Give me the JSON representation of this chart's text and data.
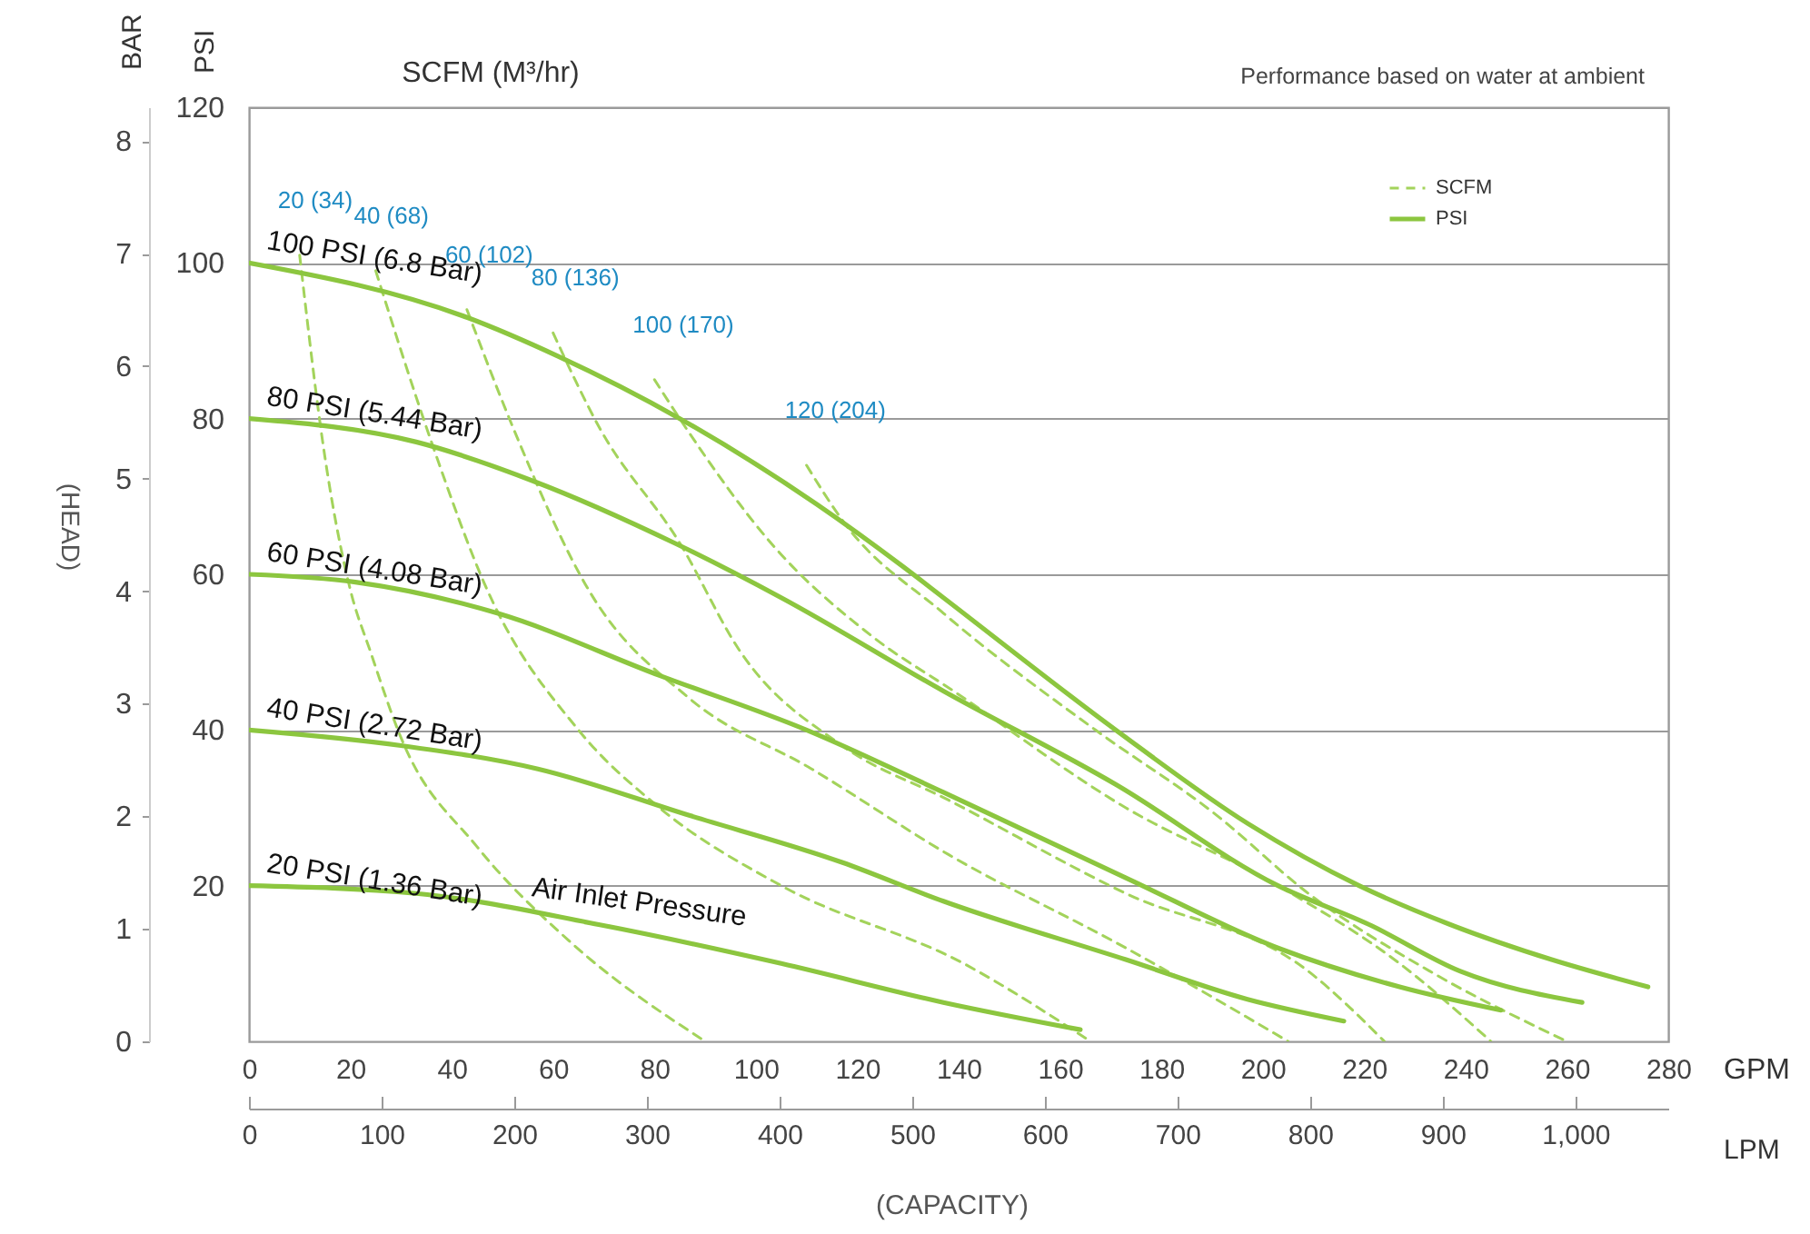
{
  "chart_data": {
    "type": "line",
    "xlabel": "GPM",
    "ylabel": "PSI",
    "y2label": "BAR",
    "x2label": "LPM",
    "xlim": [
      0,
      280
    ],
    "xticks": [
      0,
      20,
      40,
      60,
      80,
      100,
      120,
      140,
      160,
      180,
      200,
      220,
      240,
      260,
      280
    ],
    "x2lim": [
      0,
      1070
    ],
    "x2ticks": [
      0,
      100,
      200,
      300,
      400,
      500,
      600,
      700,
      800,
      900,
      {
        "value": 1000,
        "label": "1,000"
      }
    ],
    "ylim": [
      0,
      120
    ],
    "yticks": [
      20,
      40,
      60,
      80,
      100,
      120
    ],
    "y2lim": [
      0,
      8.3
    ],
    "y2ticks": [
      0,
      1,
      2,
      3,
      4,
      5,
      6,
      7,
      8
    ],
    "grid": "y",
    "legend": "top right",
    "annotations": [
      "SCFM (M³/hr)",
      "Performance based on water at ambient",
      "(HEAD)",
      "(CAPACITY)",
      "Air Inlet Pressure",
      {
        "text": "20 (34)",
        "x": 10,
        "y": 101
      },
      {
        "text": "40 (68)",
        "x": 25,
        "y": 99
      },
      {
        "text": "60 (102)",
        "x": 43,
        "y": 94
      },
      {
        "text": "80 (136)",
        "x": 60,
        "y": 91
      },
      {
        "text": "100 (170)",
        "x": 80,
        "y": 85
      },
      {
        "text": "120 (204)",
        "x": 110,
        "y": 74
      },
      {
        "text": "100 PSI (6.8 Bar)",
        "x": 0,
        "y": 100
      },
      {
        "text": "80 PSI (5.44 Bar)",
        "x": 0,
        "y": 80
      },
      {
        "text": "60 PSI (4.08 Bar)",
        "x": 0,
        "y": 60
      },
      {
        "text": "40 PSI (2.72 Bar)",
        "x": 0,
        "y": 40
      },
      {
        "text": "20 PSI (1.36 Bar)",
        "x": 0,
        "y": 20
      }
    ],
    "series": [
      {
        "name": "SCFM",
        "color": "#a3d35b",
        "line_style": "dashed",
        "x": [
          10,
          15,
          20,
          24,
          30,
          45,
          63,
          90,
          null,
          25,
          36,
          47,
          65,
          81,
          105,
          141,
          166,
          null,
          43,
          52,
          67,
          87,
          111,
          138,
          173,
          205,
          null,
          60,
          69,
          85,
          97,
          117,
          138,
          173,
          209,
          224,
          null,
          80,
          86,
          103,
          123,
          139,
          173,
          203,
          227,
          245,
          null,
          110,
          117,
          137,
          167,
          191,
          209,
          233,
          260
        ],
        "values": [
          101,
          75,
          58,
          50,
          39,
          25,
          13,
          0,
          null,
          99,
          77,
          58,
          40,
          30,
          20,
          10,
          0,
          null,
          94,
          79,
          58,
          44,
          35,
          24,
          12,
          0,
          null,
          91,
          79,
          64,
          50,
          38,
          31,
          19,
          9,
          0,
          null,
          85,
          79,
          64,
          52,
          45,
          30,
          20,
          10,
          0,
          null,
          74,
          67,
          55,
          40,
          29,
          19,
          9,
          0
        ]
      },
      {
        "name": "PSI",
        "color": "#8cc63f",
        "line_style": "solid",
        "x": [
          0,
          43,
          61,
          85,
          112,
          129,
          137,
          171,
          197,
          219,
          237,
          257,
          276,
          null,
          0,
          33,
          56,
          84,
          105,
          137,
          171,
          203,
          221,
          239,
          263,
          null,
          0,
          21,
          49,
          81,
          110,
          137,
          173,
          203,
          227,
          247,
          null,
          0,
          30,
          57,
          87,
          117,
          137,
          173,
          197,
          216,
          null,
          0,
          33,
          69,
          105,
          137,
          164
        ],
        "values": [
          100,
          93,
          88,
          80,
          69,
          61,
          57,
          40,
          28,
          20,
          15,
          10.5,
          7,
          null,
          80,
          77,
          72,
          64,
          57,
          45,
          33,
          20,
          15,
          9,
          5,
          null,
          60,
          59,
          55,
          47,
          40,
          32,
          21,
          12,
          7,
          4,
          null,
          40,
          38,
          35,
          29,
          23,
          18,
          10.5,
          5.4,
          2.6,
          null,
          20,
          19,
          15,
          10,
          5,
          1.5
        ]
      }
    ]
  }
}
